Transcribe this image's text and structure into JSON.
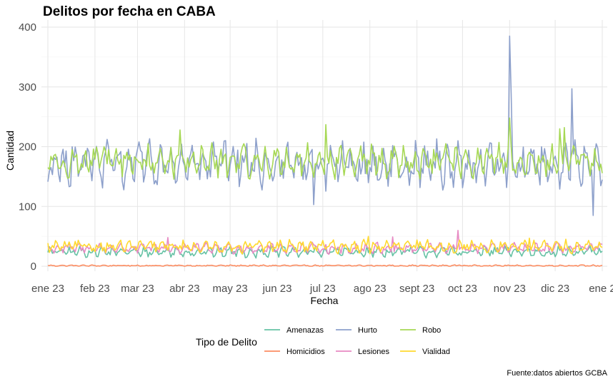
{
  "chart_data": {
    "type": "line",
    "title": "Delitos por fecha en CABA",
    "xlabel": "Fecha",
    "ylabel": "Cantidad",
    "caption": "Fuente:datos abiertos GCBA",
    "legend_title": "Tipo de Delito",
    "legend_position": "bottom",
    "grid": true,
    "x_ticks": [
      "ene 23",
      "feb 23",
      "mar 23",
      "abr 23",
      "may 23",
      "jun 23",
      "jul 23",
      "ago 23",
      "sept 23",
      "oct 23",
      "nov 23",
      "dic 23",
      "ene 24"
    ],
    "x_tick_labels_visible": [
      "ene 23",
      "feb 23",
      "mar 23",
      "abr 23",
      "may 23",
      "jun 23",
      "jul 23",
      "ago 23",
      "sept 23",
      "oct 23",
      "nov 23",
      "dic 23",
      "ene 2"
    ],
    "y_ticks": [
      0,
      100,
      200,
      300,
      400
    ],
    "ylim": [
      0,
      400
    ],
    "x_range": [
      "2023-01-01",
      "2023-12-31"
    ],
    "x_frequency": "daily",
    "series": [
      {
        "name": "Amenazas",
        "color": "#66C2A5",
        "base": 24,
        "noise": 6,
        "spikes": [],
        "order": 1
      },
      {
        "name": "Homicidios",
        "color": "#FC8D62",
        "base": 1,
        "noise": 0.8,
        "spikes": [
          [
            59,
            2
          ],
          [
            271,
            2
          ]
        ],
        "order": 0
      },
      {
        "name": "Hurto",
        "color": "#8DA0CB",
        "base": 170,
        "noise": 25,
        "spikes": [
          [
            16,
            200
          ],
          [
            60,
            208
          ],
          [
            304,
            385
          ],
          [
            305,
            290
          ],
          [
            345,
            297
          ],
          [
            359,
            85
          ],
          [
            175,
            103
          ]
        ],
        "order": 4
      },
      {
        "name": "Lesiones",
        "color": "#E78AC3",
        "base": 30,
        "noise": 6,
        "spikes": [
          [
            270,
            60
          ],
          [
            79,
            48
          ],
          [
            227,
            49
          ]
        ],
        "order": 2
      },
      {
        "name": "Robo",
        "color": "#A6D854",
        "base": 175,
        "noise": 18,
        "spikes": [
          [
            40,
            195
          ],
          [
            87,
            228
          ],
          [
            183,
            237
          ],
          [
            304,
            248
          ],
          [
            340,
            232
          ],
          [
            337,
            230
          ]
        ],
        "order": 5
      },
      {
        "name": "Vialidad",
        "color": "#FFD92F",
        "base": 33,
        "noise": 7,
        "spikes": [
          [
            211,
            50
          ],
          [
            317,
            47
          ]
        ],
        "order": 3
      }
    ]
  }
}
